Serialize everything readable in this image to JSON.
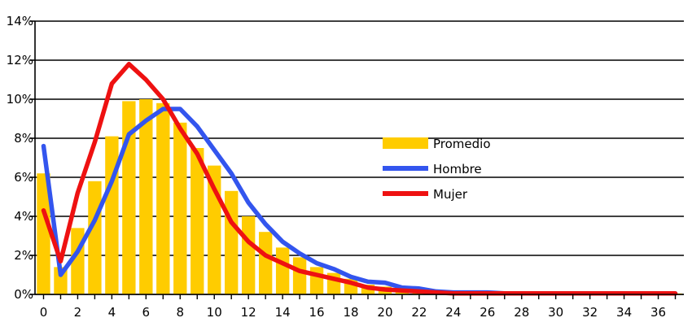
{
  "chart_data": {
    "type": "bar+line",
    "title": "",
    "xlabel": "",
    "ylabel": "",
    "ylim": [
      0,
      14
    ],
    "xlim": [
      -0.5,
      37.5
    ],
    "grid": "horizontal",
    "legend_placement": "center-right",
    "x": [
      0,
      1,
      2,
      3,
      4,
      5,
      6,
      7,
      8,
      9,
      10,
      11,
      12,
      13,
      14,
      15,
      16,
      17,
      18,
      19,
      20,
      21,
      22,
      23,
      24,
      25,
      26,
      27,
      28,
      29,
      30,
      31,
      32,
      33,
      34,
      35,
      36,
      37
    ],
    "x_tick_labels": [
      "0",
      "2",
      "4",
      "6",
      "8",
      "10",
      "12",
      "14",
      "16",
      "18",
      "20",
      "22",
      "24",
      "26",
      "28",
      "30",
      "32",
      "34",
      "36"
    ],
    "x_tick_values": [
      0,
      2,
      4,
      6,
      8,
      10,
      12,
      14,
      16,
      18,
      20,
      22,
      24,
      26,
      28,
      30,
      32,
      34,
      36
    ],
    "y_tick_labels": [
      "0%",
      "2%",
      "4%",
      "6%",
      "8%",
      "10%",
      "12%",
      "14%"
    ],
    "y_tick_values": [
      0,
      2,
      4,
      6,
      8,
      10,
      12,
      14
    ],
    "series": [
      {
        "name": "Promedio",
        "kind": "bar",
        "color": "#FFCC00",
        "values": [
          6.2,
          1.4,
          3.4,
          5.8,
          8.1,
          9.9,
          10.0,
          9.8,
          8.8,
          7.5,
          6.6,
          5.3,
          4.0,
          3.2,
          2.4,
          1.9,
          1.4,
          1.1,
          0.8,
          0.5,
          0.4,
          0.3,
          0.3,
          0.2,
          0.15,
          0.1,
          0.1,
          0.05,
          0.05,
          0.05,
          0.05,
          0.05,
          0.05,
          0.05,
          0.05,
          0.05,
          0.05,
          0.05
        ]
      },
      {
        "name": "Hombre",
        "kind": "line",
        "color": "#3355EE",
        "values": [
          7.6,
          1.0,
          2.2,
          3.8,
          5.8,
          8.2,
          8.9,
          9.5,
          9.5,
          8.6,
          7.4,
          6.2,
          4.7,
          3.6,
          2.7,
          2.1,
          1.6,
          1.3,
          0.9,
          0.65,
          0.6,
          0.35,
          0.3,
          0.15,
          0.1,
          0.1,
          0.1,
          0.05,
          0.05,
          0.05,
          0.05,
          0.05,
          0.05,
          0.05,
          0.05,
          0.05,
          0.05,
          0.05
        ]
      },
      {
        "name": "Mujer",
        "kind": "line",
        "color": "#EE1111",
        "values": [
          4.3,
          1.7,
          5.2,
          7.8,
          10.8,
          11.8,
          11.0,
          10.0,
          8.5,
          7.2,
          5.4,
          3.7,
          2.7,
          2.0,
          1.6,
          1.2,
          1.0,
          0.8,
          0.6,
          0.35,
          0.25,
          0.2,
          0.15,
          0.1,
          0.05,
          0.05,
          0.05,
          0.05,
          0.05,
          0.05,
          0.05,
          0.05,
          0.05,
          0.05,
          0.05,
          0.05,
          0.05,
          0.05
        ]
      }
    ]
  }
}
